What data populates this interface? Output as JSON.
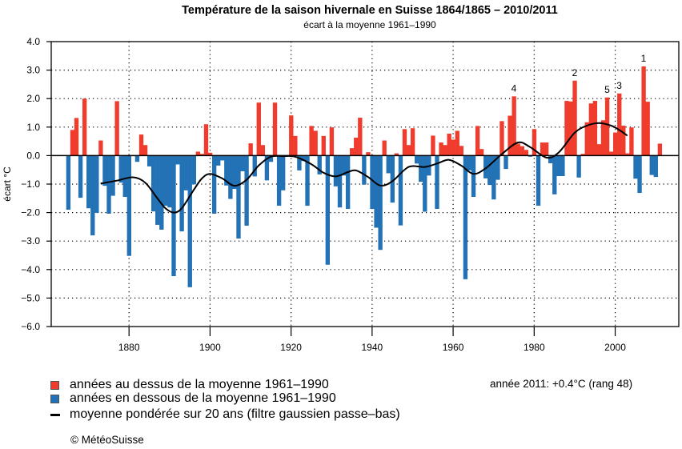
{
  "colors": {
    "above": "#f03c2d",
    "below": "#2272b5",
    "smooth": "#000000"
  },
  "legend": {
    "above": "années au dessus de la moyenne 1961–1990",
    "below": "années en dessous de la moyenne 1961–1990",
    "smooth": "moyenne pondérée sur 20 ans (filtre gaussien passe–bas)"
  },
  "note": "année 2011: +0.4°C (rang 48)",
  "copyright": "© MétéoSuisse",
  "chart_data": {
    "type": "bar",
    "title": "Température de la saison hivernale en Suisse 1864/1865 – 2010/2011",
    "subtitle": "écart à la moyenne 1961–1990",
    "xlabel": "",
    "ylabel": "écart °C",
    "ylim": [
      -6.0,
      4.0
    ],
    "xlim": [
      1860.8,
      2015.7
    ],
    "yticks": [
      "4.0",
      "3.0",
      "2.0",
      "1.0",
      "0.0",
      "−1.0",
      "−2.0",
      "−3.0",
      "−4.0",
      "−5.0",
      "−6.0"
    ],
    "ytick_values": [
      4,
      3,
      2,
      1,
      0,
      -1,
      -2,
      -3,
      -4,
      -5,
      -6
    ],
    "xticks": [
      "1880",
      "1900",
      "1920",
      "1940",
      "1960",
      "1980",
      "2000"
    ],
    "xtick_values": [
      1880,
      1900,
      1920,
      1940,
      1960,
      1980,
      2000
    ],
    "grid": true,
    "legend_position": "bottom-left",
    "start_year": 1865,
    "values": [
      -1.9,
      0.9,
      1.32,
      -1.48,
      2.0,
      -1.85,
      -2.8,
      -2.01,
      0.53,
      -1.06,
      -2.04,
      -1.41,
      1.91,
      -0.95,
      -1.45,
      -3.52,
      -0.02,
      -0.22,
      0.74,
      0.37,
      -0.38,
      -1.96,
      -2.43,
      -2.6,
      -1.76,
      -1.82,
      -4.23,
      -0.31,
      -2.66,
      -1.22,
      -4.62,
      -1.01,
      0.14,
      0.06,
      1.1,
      0.1,
      -2.04,
      -0.35,
      -0.17,
      -1.05,
      -1.52,
      -1.17,
      -2.91,
      -0.55,
      -2.46,
      0.43,
      -0.73,
      1.86,
      0.37,
      -0.87,
      -0.22,
      1.86,
      -1.76,
      -1.22,
      -0.02,
      1.41,
      0.69,
      -0.52,
      -0.19,
      -1.76,
      1.04,
      0.87,
      -0.66,
      0.69,
      -3.83,
      0.99,
      -1.08,
      -1.82,
      -0.7,
      -1.87,
      0.26,
      0.63,
      1.33,
      -1.02,
      0.12,
      -1.87,
      -2.53,
      -3.31,
      0.53,
      -0.62,
      -1.65,
      0.08,
      -2.45,
      0.93,
      0.37,
      0.96,
      -0.28,
      -0.92,
      -1.97,
      -0.7,
      0.7,
      -1.87,
      0.46,
      0.37,
      0.77,
      0.56,
      0.87,
      0.34,
      -4.34,
      -0.52,
      -1.45,
      1.04,
      0.23,
      -0.8,
      -1.03,
      -1.54,
      -0.85,
      1.21,
      -0.47,
      1.4,
      2.08,
      0.42,
      0.33,
      0.2,
      -0.04,
      0.93,
      -1.76,
      0.46,
      0.46,
      -0.27,
      -1.36,
      -0.72,
      -0.72,
      1.92,
      1.9,
      2.63,
      -0.77,
      0.06,
      1.17,
      1.83,
      1.92,
      0.4,
      1.24,
      2.04,
      0.14,
      0.81,
      2.18,
      1.05,
      0.08,
      0.99,
      -0.81,
      -1.31,
      3.13,
      1.89,
      -0.68,
      -0.75,
      0.42
    ],
    "smooth": {
      "name": "moyenne pondérée sur 20 ans",
      "x": [
        1873,
        1877,
        1881,
        1884,
        1887,
        1889,
        1891,
        1893,
        1896,
        1898,
        1900,
        1903,
        1906,
        1909,
        1912,
        1915,
        1918,
        1921,
        1925,
        1928,
        1931,
        1934,
        1936,
        1939,
        1942,
        1945,
        1949,
        1953,
        1956,
        1959,
        1962,
        1965,
        1968,
        1972,
        1976,
        1979,
        1983,
        1986,
        1990,
        1993,
        1996,
        1999,
        2001,
        2003
      ],
      "y": [
        -0.98,
        -0.88,
        -0.76,
        -0.95,
        -1.5,
        -1.85,
        -2.0,
        -1.85,
        -1.2,
        -0.8,
        -0.64,
        -0.8,
        -1.06,
        -0.85,
        -0.35,
        -0.04,
        -0.02,
        -0.04,
        -0.3,
        -0.6,
        -0.73,
        -0.58,
        -0.52,
        -0.75,
        -1.05,
        -0.9,
        -0.4,
        -0.4,
        -0.28,
        -0.15,
        -0.35,
        -0.64,
        -0.45,
        0.05,
        0.46,
        0.3,
        -0.07,
        0.1,
        0.8,
        1.05,
        1.14,
        1.05,
        0.9,
        0.7
      ]
    },
    "rank_labels": [
      {
        "label": "1",
        "year": 2007
      },
      {
        "label": "2",
        "year": 1990
      },
      {
        "label": "3",
        "year": 2001
      },
      {
        "label": "4",
        "year": 1975
      },
      {
        "label": "5",
        "year": 1998
      }
    ]
  }
}
